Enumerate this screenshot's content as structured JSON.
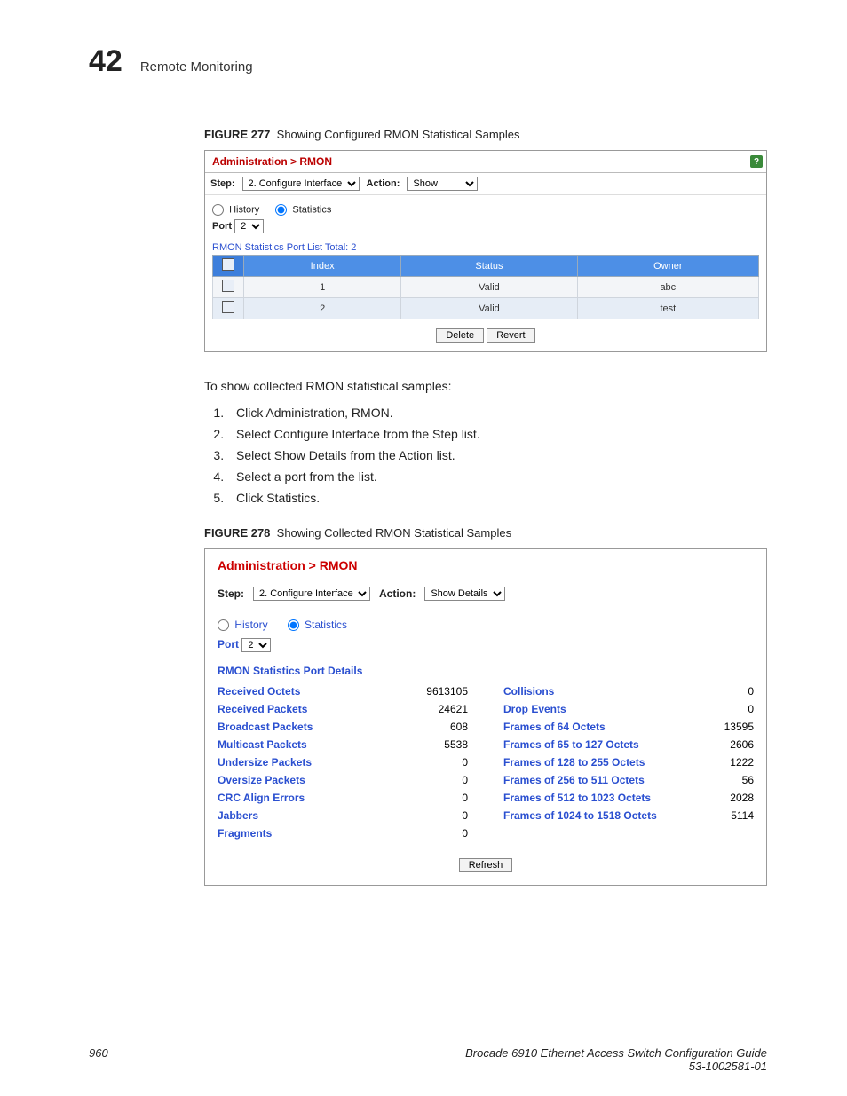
{
  "header": {
    "chapter_num": "42",
    "chapter_title": "Remote Monitoring"
  },
  "fig277": {
    "caption_label": "FIGURE 277",
    "caption_text": "Showing Configured RMON Statistical Samples",
    "breadcrumb": "Administration > RMON",
    "step_label": "Step:",
    "step_value": "2. Configure Interface",
    "action_label": "Action:",
    "action_value": "Show",
    "radio_history": "History",
    "radio_statistics": "Statistics",
    "port_label": "Port",
    "port_value": "2",
    "list_title": "RMON Statistics Port List   Total: 2",
    "columns": [
      "Index",
      "Status",
      "Owner"
    ],
    "rows": [
      {
        "index": "1",
        "status": "Valid",
        "owner": "abc"
      },
      {
        "index": "2",
        "status": "Valid",
        "owner": "test"
      }
    ],
    "btn_delete": "Delete",
    "btn_revert": "Revert",
    "colors": {
      "header_bg": "#4d8fe6",
      "row_bg": "#f3f5f8",
      "row_alt_bg": "#e6edf6"
    }
  },
  "body_text": {
    "intro": "To show collected RMON statistical samples:",
    "steps": [
      "Click Administration, RMON.",
      "Select Configure Interface from the Step list.",
      "Select Show Details from the Action list.",
      "Select a port from the list.",
      "Click Statistics."
    ]
  },
  "fig278": {
    "caption_label": "FIGURE 278",
    "caption_text": "Showing Collected RMON Statistical Samples",
    "breadcrumb": "Administration > RMON",
    "step_label": "Step:",
    "step_value": "2. Configure Interface",
    "action_label": "Action:",
    "action_value": "Show Details",
    "radio_history": "History",
    "radio_statistics": "Statistics",
    "port_label": "Port",
    "port_value": "2",
    "sect_title": "RMON Statistics Port Details",
    "left": [
      {
        "lab": "Received Octets",
        "val": "9613105"
      },
      {
        "lab": "Received Packets",
        "val": "24621"
      },
      {
        "lab": "Broadcast Packets",
        "val": "608"
      },
      {
        "lab": "Multicast Packets",
        "val": "5538"
      },
      {
        "lab": "Undersize Packets",
        "val": "0"
      },
      {
        "lab": "Oversize Packets",
        "val": "0"
      },
      {
        "lab": "CRC Align Errors",
        "val": "0"
      },
      {
        "lab": "Jabbers",
        "val": "0"
      },
      {
        "lab": "Fragments",
        "val": "0"
      }
    ],
    "right": [
      {
        "lab": "Collisions",
        "val": "0"
      },
      {
        "lab": "Drop Events",
        "val": "0"
      },
      {
        "lab": "Frames of 64 Octets",
        "val": "13595"
      },
      {
        "lab": "Frames of 65 to 127 Octets",
        "val": "2606"
      },
      {
        "lab": "Frames of 128 to 255 Octets",
        "val": "1222"
      },
      {
        "lab": "Frames of 256 to 511 Octets",
        "val": "56"
      },
      {
        "lab": "Frames of 512 to 1023 Octets",
        "val": "2028"
      },
      {
        "lab": "Frames of 1024 to 1518 Octets",
        "val": "5114"
      }
    ],
    "btn_refresh": "Refresh",
    "colors": {
      "link_color": "#2a4fd0",
      "breadcrumb_color": "#c00"
    }
  },
  "footer": {
    "page_num": "960",
    "doc_title": "Brocade 6910 Ethernet Access Switch Configuration Guide",
    "doc_num": "53-1002581-01"
  }
}
